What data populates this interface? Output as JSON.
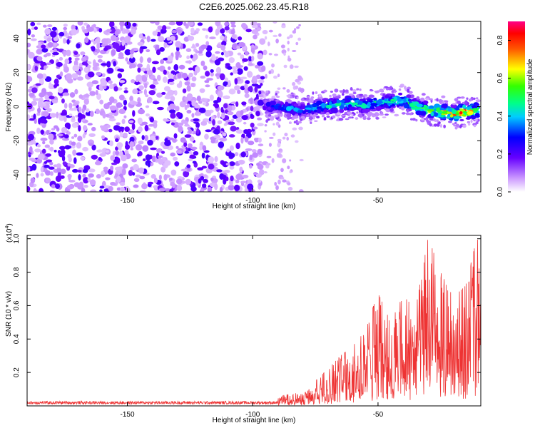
{
  "title": "C2E6.2025.062.23.45.R18",
  "chart_data": [
    {
      "type": "heatmap",
      "xlabel": "Height of straight line (km)",
      "ylabel": "Frequency (Hz)",
      "xlim": [
        -190,
        -9
      ],
      "ylim": [
        -50,
        50
      ],
      "xticks": [
        -150,
        -100,
        -50
      ],
      "yticks": [
        -40,
        -20,
        0,
        20,
        40
      ],
      "colorbar": {
        "label": "Normalized spectral amplitude",
        "range": [
          0.0,
          0.9
        ],
        "ticks": [
          "0.0",
          "0.2",
          "0.4",
          "0.6",
          "0.8"
        ]
      },
      "noise_region": {
        "x_range": [
          -190,
          -95
        ],
        "freq_range": [
          -50,
          50
        ],
        "amplitude": [
          0.05,
          0.25
        ]
      },
      "sparse_noise_region": {
        "x_range": [
          -95,
          -80
        ],
        "freq_range": [
          -50,
          50
        ],
        "amplitude": [
          0.05,
          0.15
        ]
      },
      "signal_band": {
        "x": [
          -95,
          -90,
          -85,
          -80,
          -75,
          -70,
          -65,
          -60,
          -55,
          -50,
          -45,
          -40,
          -35,
          -30,
          -25,
          -20,
          -15,
          -10
        ],
        "center_freq": [
          0,
          0,
          -1,
          -2,
          0,
          1,
          1,
          2,
          1,
          2,
          3,
          4,
          0,
          -2,
          -3,
          -4,
          -3,
          -2
        ],
        "amplitude": [
          0.3,
          0.35,
          0.4,
          0.35,
          0.45,
          0.5,
          0.5,
          0.55,
          0.5,
          0.5,
          0.5,
          0.55,
          0.6,
          0.65,
          0.7,
          0.8,
          0.85,
          0.6
        ]
      }
    },
    {
      "type": "line",
      "xlabel": "Height of straight line (km)",
      "ylabel": "SNR (10 * v/v)",
      "y_multiplier": "(x10",
      "y_multiplier_exp": "4",
      "y_multiplier_close": ")",
      "xlim": [
        -190,
        -9
      ],
      "ylim": [
        0,
        1.02
      ],
      "xticks": [
        -150,
        -100,
        -50
      ],
      "yticks": [
        "0.2",
        "0.4",
        "0.6",
        "0.8",
        "1.0"
      ],
      "color": "#ee3333",
      "envelope": {
        "x": [
          -190,
          -100,
          -90,
          -85,
          -80,
          -75,
          -70,
          -65,
          -60,
          -55,
          -50,
          -45,
          -40,
          -35,
          -30,
          -25,
          -20,
          -15,
          -11,
          -10
        ],
        "y": [
          0.03,
          0.03,
          0.05,
          0.08,
          0.07,
          0.15,
          0.22,
          0.3,
          0.36,
          0.45,
          0.68,
          0.5,
          0.66,
          0.58,
          1.01,
          0.8,
          0.65,
          0.72,
          0.98,
          1.0
        ]
      }
    }
  ],
  "colors": {
    "noise_purple": "#7d1fe6",
    "noise_light": "#c9a4f7",
    "signal_line": "#ee3333"
  }
}
